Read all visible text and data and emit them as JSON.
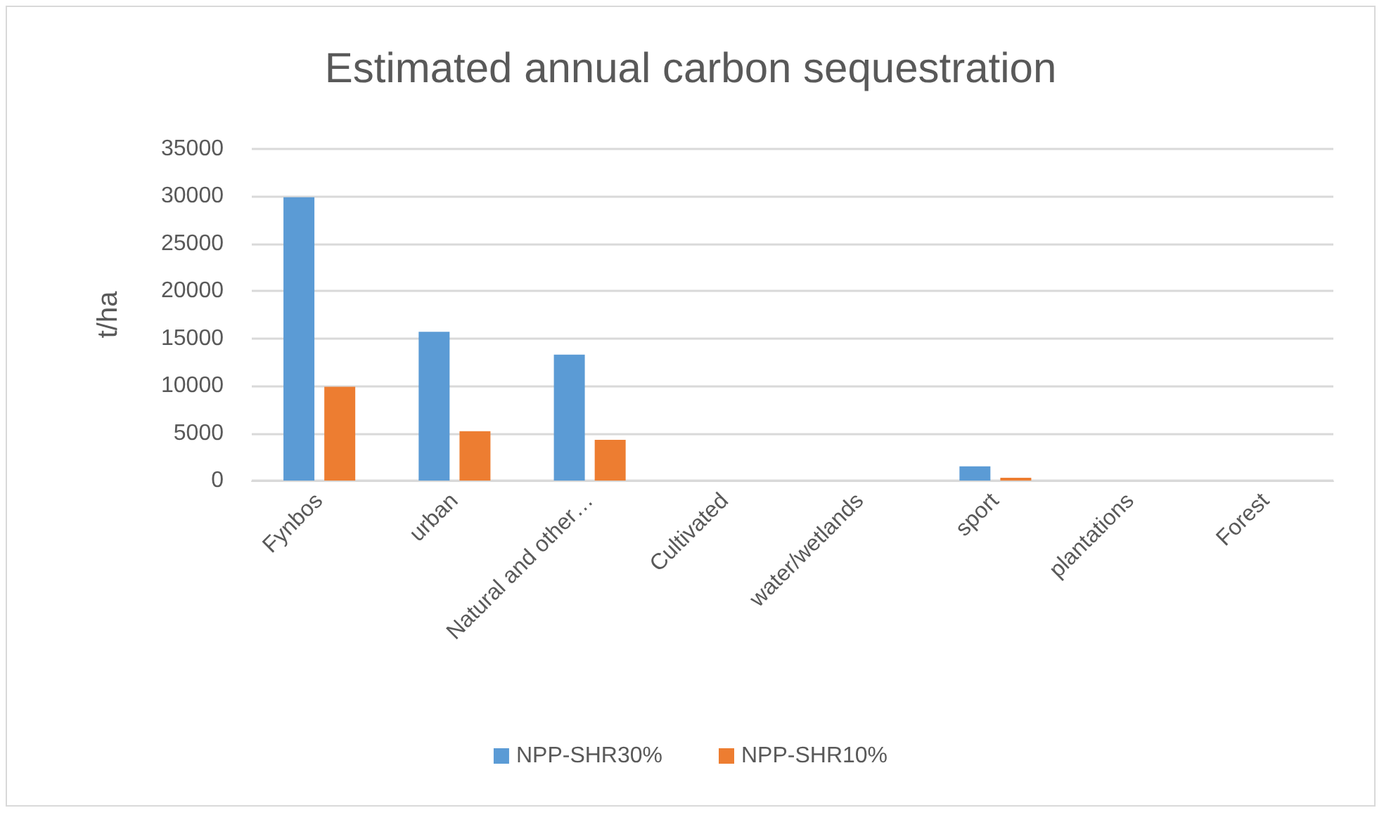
{
  "chart_data": {
    "type": "bar",
    "title": "Estimated annual carbon sequestration",
    "ylabel": "t/ha",
    "categories": [
      "Fynbos",
      "urban",
      "Natural and other…",
      "Cultivated",
      "water/wetlands",
      "sport",
      "plantations",
      "Forest"
    ],
    "series": [
      {
        "name": "NPP-SHR30%",
        "color": "#5b9bd5",
        "values": [
          29900,
          15700,
          13300,
          0,
          0,
          1500,
          0,
          0
        ]
      },
      {
        "name": "NPP-SHR10%",
        "color": "#ed7d31",
        "values": [
          9900,
          5200,
          4300,
          0,
          0,
          300,
          0,
          0
        ]
      }
    ],
    "ylim": [
      0,
      35000
    ],
    "yticks": [
      0,
      5000,
      10000,
      15000,
      20000,
      25000,
      30000,
      35000
    ],
    "grid": "y",
    "legend": "bottom"
  }
}
